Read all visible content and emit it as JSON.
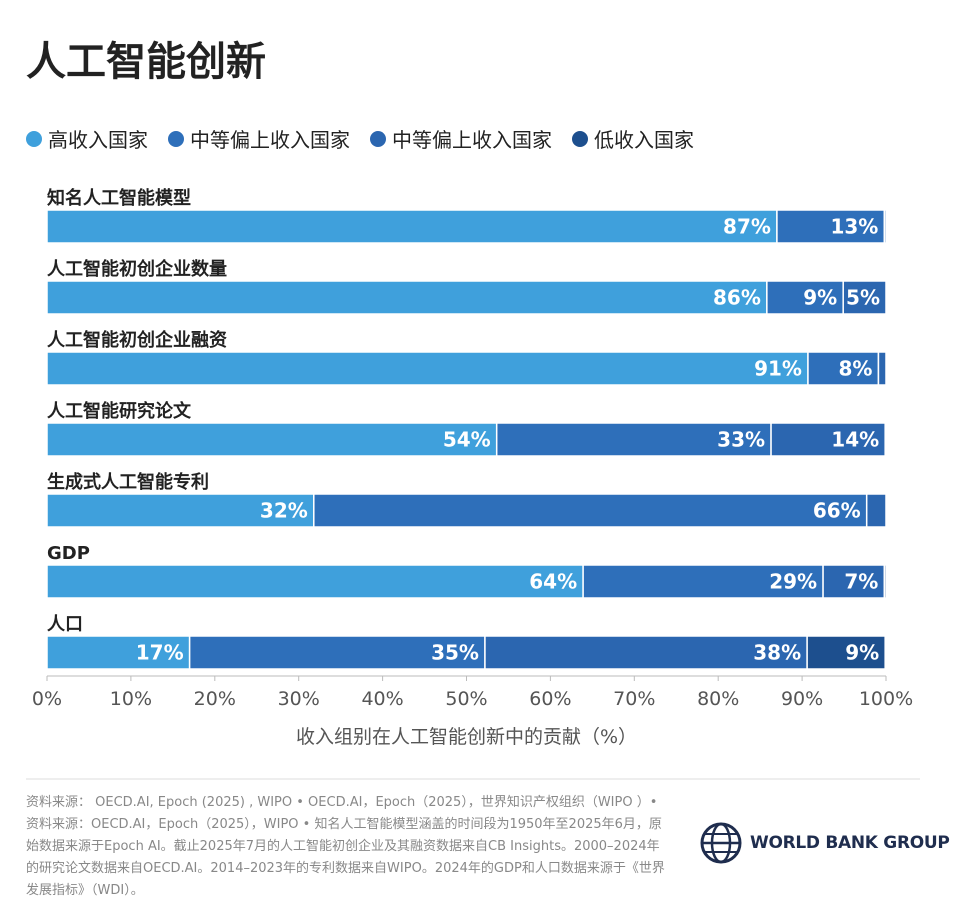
{
  "chart_data": {
    "type": "stacked-bar-horizontal",
    "title": "人工智能创新",
    "categories": [
      "知名人工智能模型",
      "人工智能初创企业数量",
      "人工智能初创企业融资",
      "人工智能研究论文",
      "生成式人工智能专利",
      "GDP",
      "人口"
    ],
    "series": [
      {
        "name": "高收入国家",
        "color": "#3fa0dc",
        "values": [
          87,
          85.8,
          90.7,
          53.6,
          31.8,
          63.9,
          17
        ],
        "value_labels": [
          "87%",
          "86%",
          "91%",
          "54%",
          "32%",
          "64%",
          "17%"
        ]
      },
      {
        "name": "中等偏上收入国家",
        "color": "#2e6fba",
        "values": [
          12.8,
          9.1,
          8.4,
          32.7,
          65.9,
          28.6,
          35.2
        ],
        "value_labels": [
          "13%",
          "9%",
          "8%",
          "33%",
          "66%",
          "29%",
          "35%"
        ]
      },
      {
        "name": "中等偏上收入国家",
        "color": "#2b66b0",
        "values": [
          0.2,
          5.1,
          0.9,
          13.6,
          2.3,
          7.3,
          38.4
        ],
        "value_labels": [
          null,
          "5%",
          null,
          "14%",
          null,
          "7%",
          "38%"
        ]
      },
      {
        "name": "低收入国家",
        "color": "#1d4f8e",
        "values": [
          0,
          0,
          0,
          0,
          0,
          0.2,
          9.3
        ],
        "value_labels": [
          null,
          null,
          null,
          null,
          null,
          null,
          "9%"
        ]
      }
    ],
    "xlim": [
      0,
      100
    ],
    "xticks": [
      {
        "value": 0,
        "label": "0%"
      },
      {
        "value": 10,
        "label": "10%"
      },
      {
        "value": 20,
        "label": "20%"
      },
      {
        "value": 30,
        "label": "30%"
      },
      {
        "value": 40,
        "label": "40%"
      },
      {
        "value": 50,
        "label": "50%"
      },
      {
        "value": 60,
        "label": "60%"
      },
      {
        "value": 70,
        "label": "70%"
      },
      {
        "value": 80,
        "label": "80%"
      },
      {
        "value": 90,
        "label": "90%"
      },
      {
        "value": 100,
        "label": "100%"
      }
    ],
    "xlabel": "收入组别在人工智能创新中的贡献（%）"
  },
  "source": "资料来源： OECD.AI, Epoch (2025) , WIPO • OECD.AI，Epoch（2025），世界知识产权组织（WIPO ）• 资料来源：OECD.AI，Epoch（2025），WIPO • 知名人工智能模型涵盖的时间段为1950年至2025年6月，原始数据来源于Epoch AI。截止2025年7月的人工智能初创企业及其融资数据来自CB Insights。2000–2024年的研究论文数据来自OECD.AI。2014–2023年的专利数据来自WIPO。2024年的GDP和人口数据来源于《世界发展指标》（WDI）。",
  "logo": "WORLD BANK GROUP"
}
